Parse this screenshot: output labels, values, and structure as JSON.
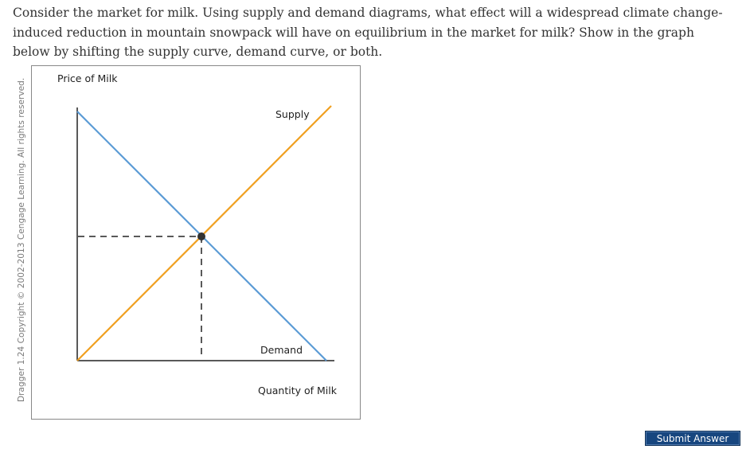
{
  "question": {
    "text": "Consider the market for milk. Using supply and demand diagrams, what effect will a widespread climate change-induced reduction in mountain snowpack will have on equilibrium in the market for milk? Show in the graph below by shifting the supply curve, demand curve, or both."
  },
  "copyright": "Dragger 1.24 Copyright © 2002-2013 Cengage Learning. All rights reserved.",
  "graph": {
    "y_axis_label": "Price of Milk",
    "x_axis_label": "Quantity of Milk",
    "supply_label": "Supply",
    "demand_label": "Demand",
    "colors": {
      "supply": "#f0a020",
      "demand": "#5b9bd5",
      "axes": "#222222",
      "equilibrium": "#333333"
    }
  },
  "submit_label": "Submit Answer"
}
